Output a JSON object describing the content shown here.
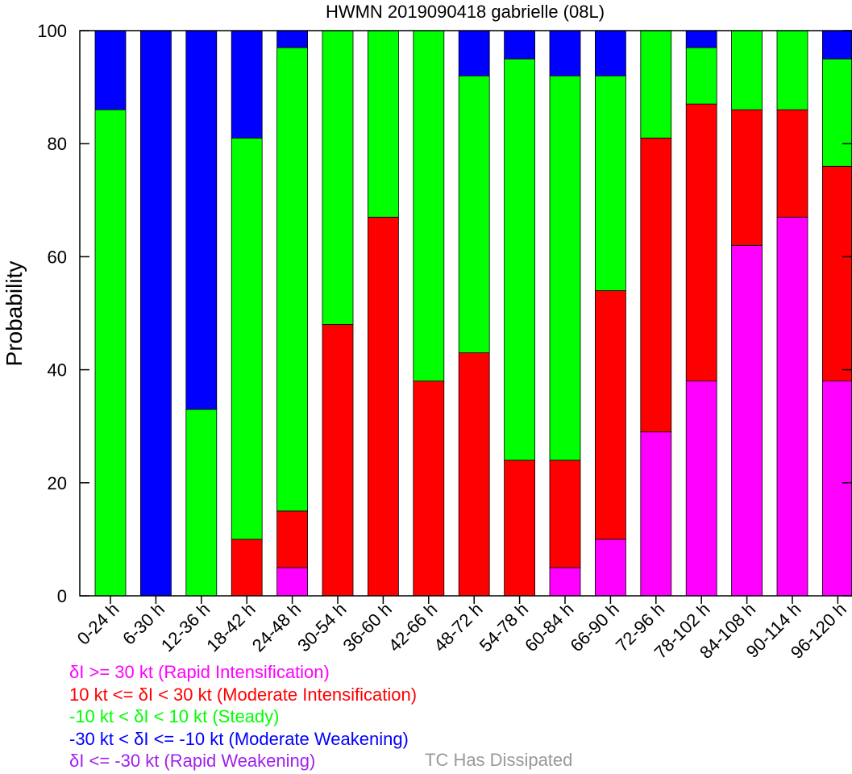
{
  "chart_data": {
    "type": "bar",
    "stacked": true,
    "title": "HWMN 2019090418 gabrielle (08L)",
    "xlabel": "",
    "ylabel": "Probability",
    "ylim": [
      0,
      100
    ],
    "yticks": [
      "0",
      "20",
      "40",
      "60",
      "80",
      "100"
    ],
    "grid": false,
    "categories": [
      "0-24 h",
      "6-30 h",
      "12-36 h",
      "18-42 h",
      "24-48 h",
      "30-54 h",
      "36-60 h",
      "42-66 h",
      "48-72 h",
      "54-78 h",
      "60-84 h",
      "66-90 h",
      "72-96 h",
      "78-102 h",
      "84-108 h",
      "90-114 h",
      "96-120 h"
    ],
    "series": [
      {
        "name": "δI >= 30 kt (Rapid Intensification)",
        "color": "#ff00ff",
        "values": [
          0,
          0,
          0,
          0,
          5,
          0,
          0,
          0,
          0,
          0,
          5,
          10,
          29,
          38,
          62,
          67,
          38
        ]
      },
      {
        "name": "10 kt <= δI < 30 kt (Moderate Intensification)",
        "color": "#ff0000",
        "values": [
          0,
          0,
          0,
          10,
          10,
          48,
          67,
          38,
          43,
          24,
          19,
          44,
          52,
          49,
          24,
          19,
          38
        ]
      },
      {
        "name": "-10 kt < δI < 10 kt (Steady)",
        "color": "#00ff00",
        "values": [
          86,
          0,
          33,
          71,
          82,
          52,
          33,
          62,
          49,
          71,
          68,
          38,
          19,
          10,
          14,
          14,
          19
        ]
      },
      {
        "name": "-30 kt < δI <= -10 kt (Moderate Weakening)",
        "color": "#0000ff",
        "values": [
          14,
          100,
          67,
          19,
          3,
          0,
          0,
          0,
          8,
          5,
          8,
          8,
          0,
          3,
          0,
          0,
          5
        ]
      },
      {
        "name": "δI <= -30 kt (Rapid Weakening)",
        "color": "#a020f0",
        "values": [
          0,
          0,
          0,
          0,
          0,
          0,
          0,
          0,
          0,
          0,
          0,
          0,
          0,
          0,
          0,
          0,
          0
        ]
      }
    ],
    "legend_position": "bottom-left",
    "note": {
      "text": "TC Has Dissipated",
      "color": "#999999"
    }
  }
}
